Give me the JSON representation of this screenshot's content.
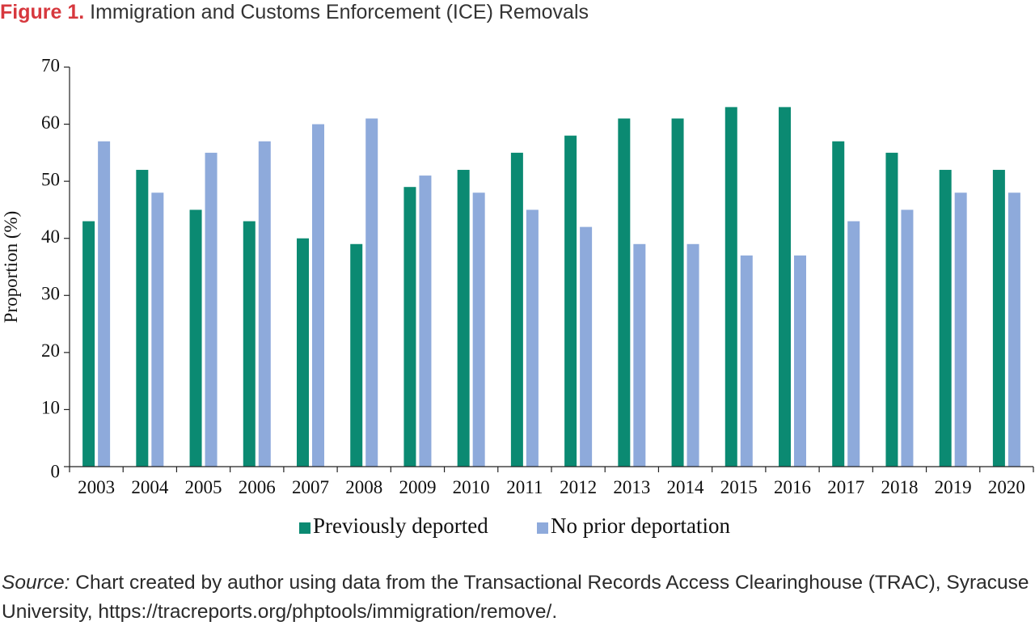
{
  "figure": {
    "label": "Figure 1.",
    "title": "Immigration and Customs Enforcement (ICE) Removals"
  },
  "source": {
    "label": "Source:",
    "text": "Chart created by author using data from the Transactional Records Access Clearinghouse (TRAC), Syracuse University, https://tracreports.org/phptools/immigration/remove/."
  },
  "colors": {
    "previously_deported": "#0b8a72",
    "no_prior": "#8eaadb",
    "title_accent": "#d7383e"
  },
  "chart_data": {
    "type": "bar",
    "title": "",
    "xlabel": "",
    "ylabel": "Proportion (%)",
    "ylim": [
      0,
      70
    ],
    "yticks": [
      0,
      10,
      20,
      30,
      40,
      50,
      60,
      70
    ],
    "grid": false,
    "legend_position": "bottom",
    "categories": [
      "2003",
      "2004",
      "2005",
      "2006",
      "2007",
      "2008",
      "2009",
      "2010",
      "2011",
      "2012",
      "2013",
      "2014",
      "2015",
      "2016",
      "2017",
      "2018",
      "2019",
      "2020"
    ],
    "series": [
      {
        "name": "Previously deported",
        "color": "#0b8a72",
        "values": [
          43,
          52,
          45,
          43,
          40,
          39,
          49,
          52,
          55,
          58,
          61,
          61,
          63,
          63,
          57,
          55,
          52,
          52
        ]
      },
      {
        "name": "No prior deportation",
        "color": "#8eaadb",
        "values": [
          57,
          48,
          55,
          57,
          60,
          61,
          51,
          48,
          45,
          42,
          39,
          39,
          37,
          37,
          43,
          45,
          48,
          48
        ]
      }
    ]
  }
}
